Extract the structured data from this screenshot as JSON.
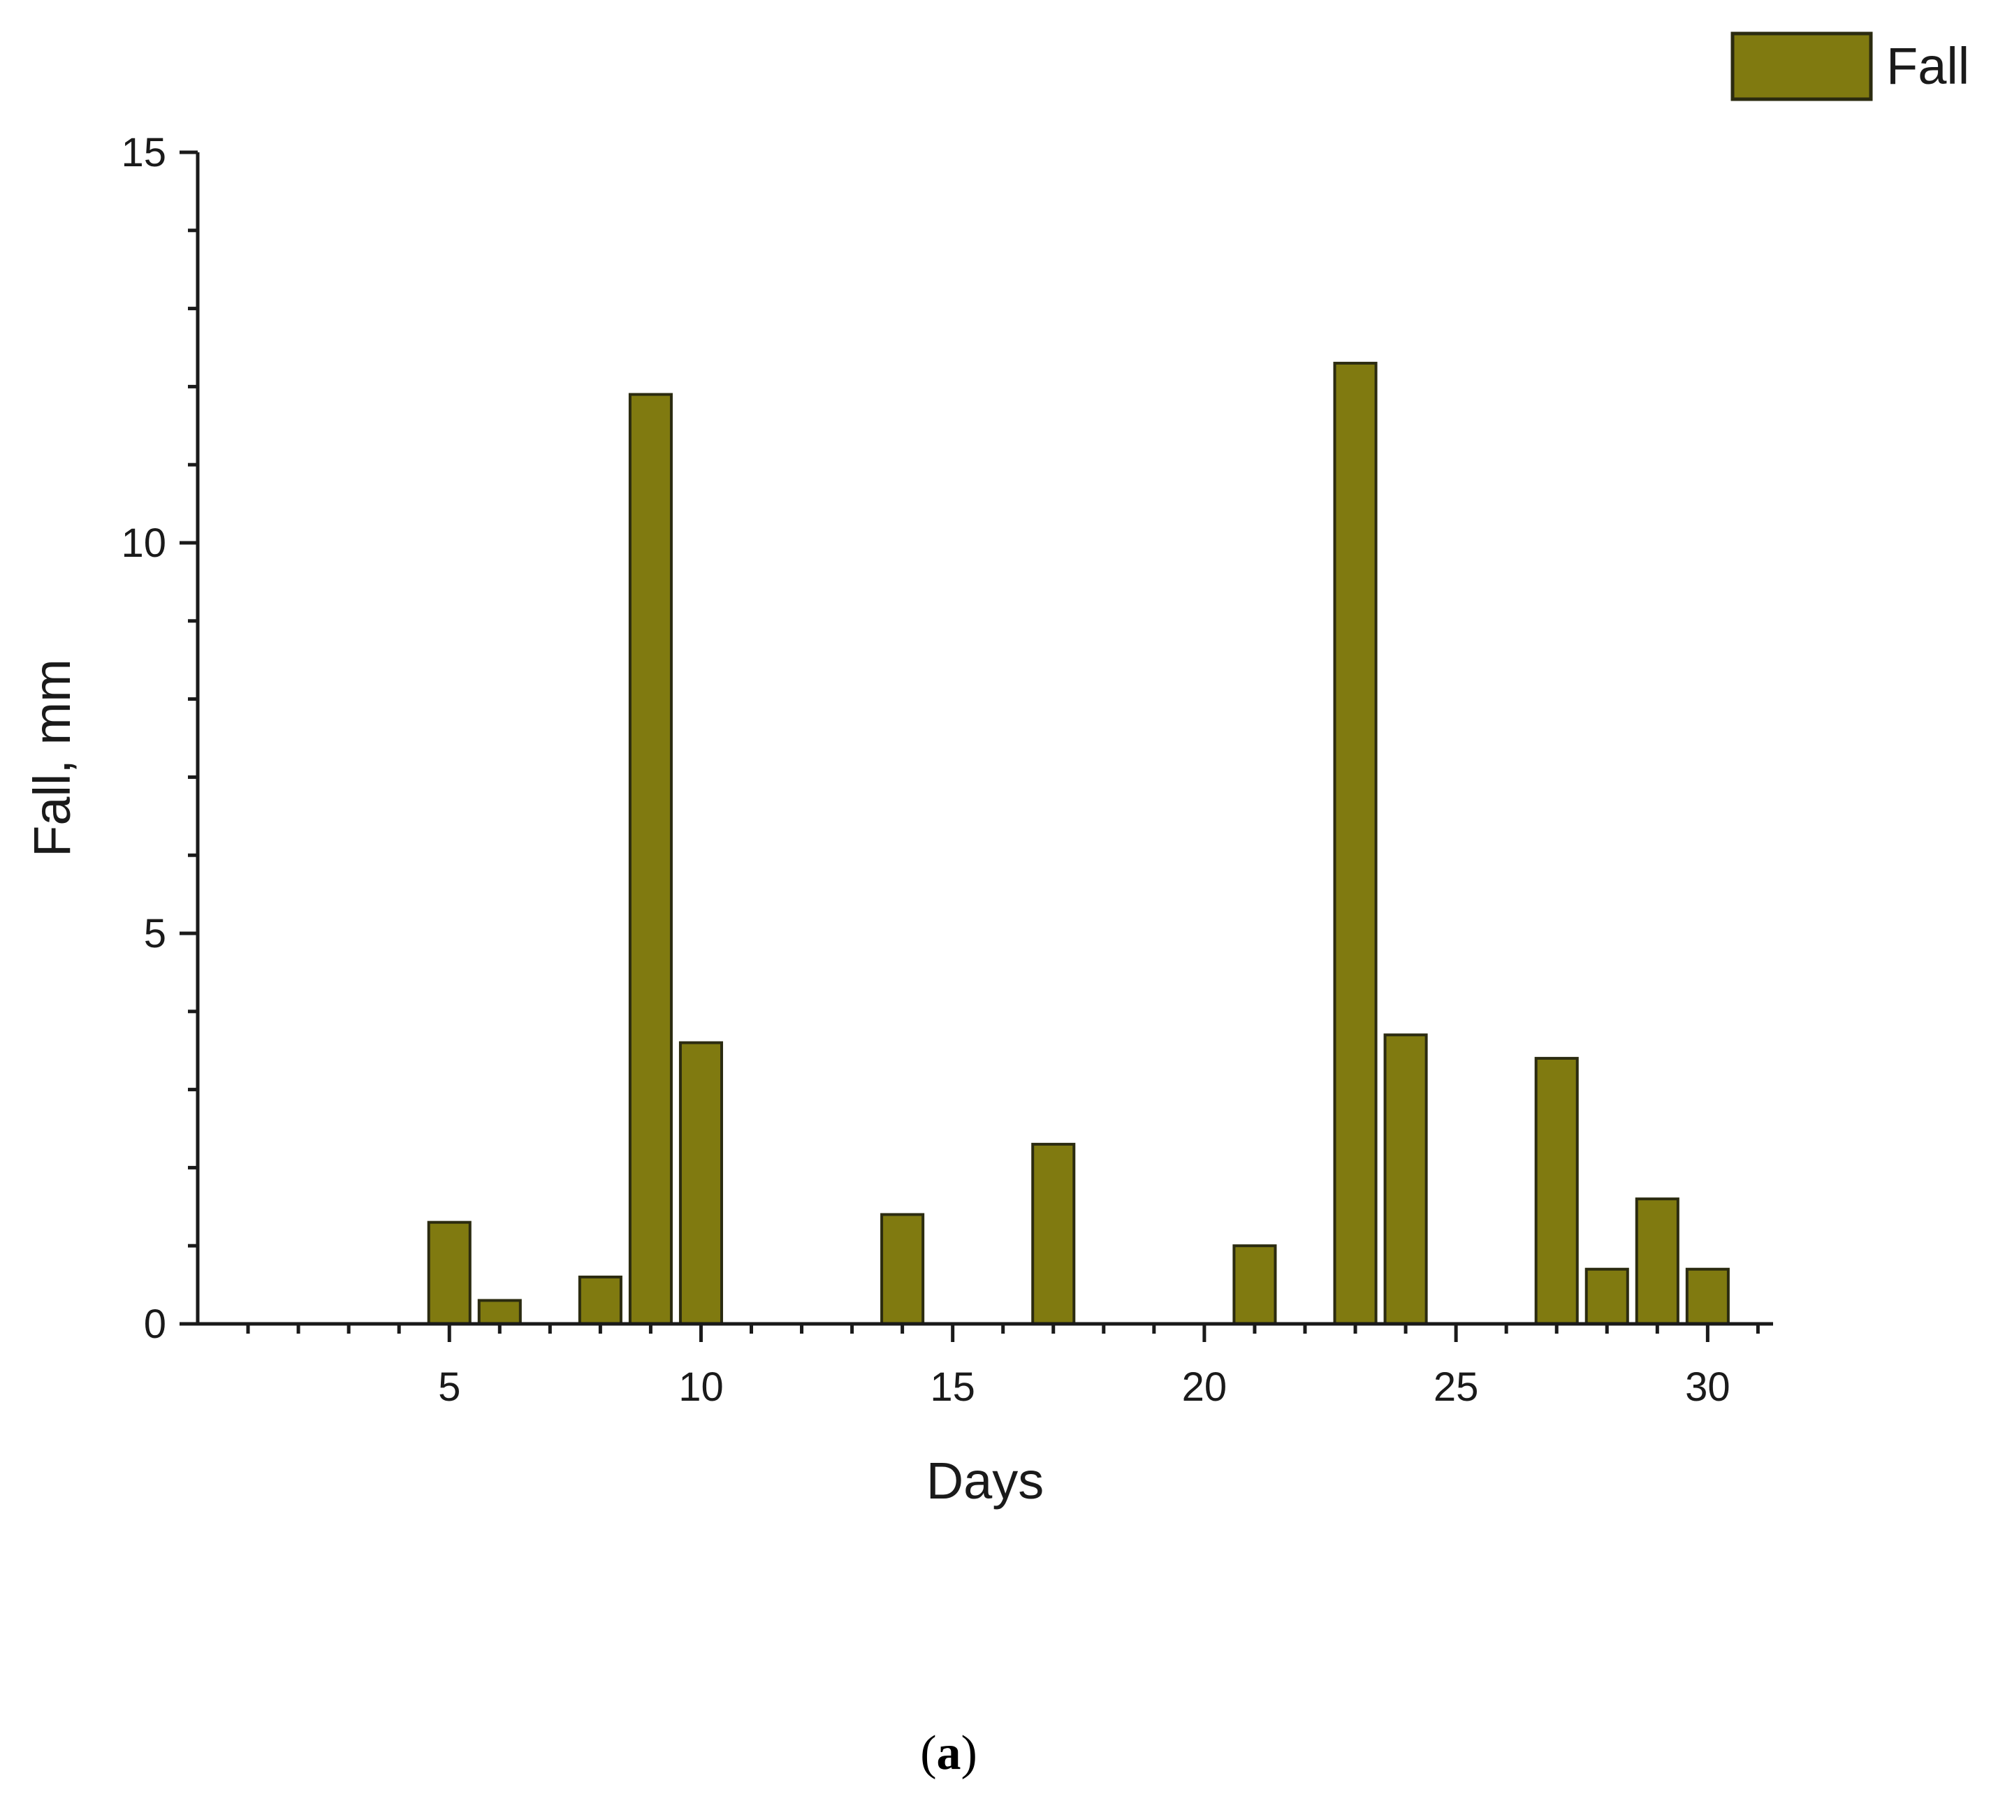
{
  "chart_data": {
    "type": "bar",
    "xlabel": "Days",
    "ylabel": "Fall, mm",
    "xlim": [
      0,
      31.3
    ],
    "ylim": [
      0,
      15
    ],
    "x_ticks": [
      5,
      10,
      15,
      20,
      25,
      30
    ],
    "y_ticks": [
      0,
      5,
      10,
      15
    ],
    "x_minor_step": 1,
    "y_minor_step": 1,
    "grid": false,
    "legend_position": "top-right",
    "bar_color": "#807a10",
    "series": [
      {
        "name": "Fall",
        "x": [
          5,
          6,
          8,
          9,
          10,
          14,
          17,
          21,
          23,
          24,
          27,
          28,
          29,
          30
        ],
        "values": [
          1.3,
          0.3,
          0.6,
          11.9,
          3.6,
          1.4,
          2.3,
          1.0,
          12.3,
          3.7,
          3.4,
          0.7,
          1.6,
          0.7
        ]
      }
    ]
  },
  "caption": {
    "open": "(",
    "label": "a",
    "close": ")"
  }
}
